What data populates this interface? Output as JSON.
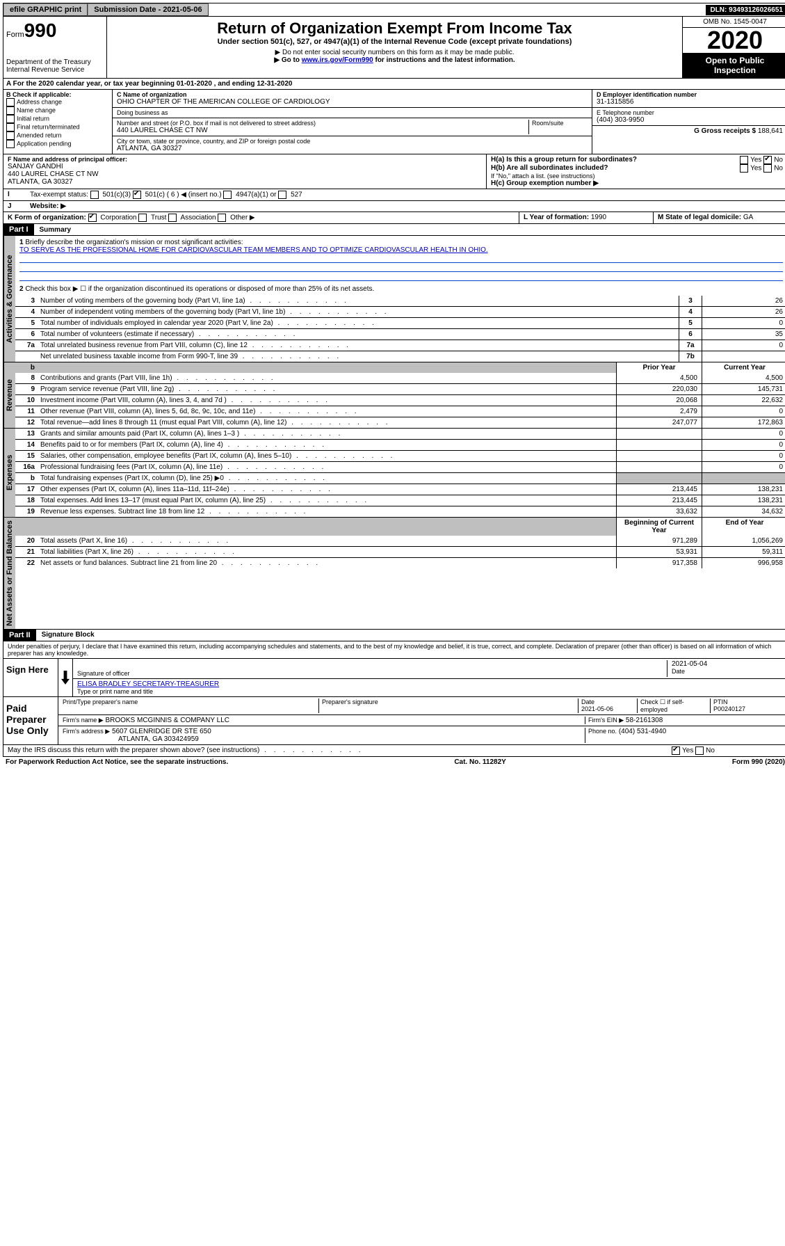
{
  "topbar": {
    "efile": "efile GRAPHIC print",
    "submission": "Submission Date - 2021-05-06",
    "dln": "DLN: 93493126026651"
  },
  "header": {
    "form_label": "Form",
    "form_number": "990",
    "dept": "Department of the Treasury\nInternal Revenue Service",
    "title": "Return of Organization Exempt From Income Tax",
    "subtitle": "Under section 501(c), 527, or 4947(a)(1) of the Internal Revenue Code (except private foundations)",
    "note1": "▶ Do not enter social security numbers on this form as it may be made public.",
    "note2_pre": "▶ Go to ",
    "note2_link": "www.irs.gov/Form990",
    "note2_post": " for instructions and the latest information.",
    "omb": "OMB No. 1545-0047",
    "year": "2020",
    "open": "Open to Public Inspection"
  },
  "section_a": "A For the 2020 calendar year, or tax year beginning 01-01-2020   , and ending 12-31-2020",
  "box_b": {
    "label": "B Check if applicable:",
    "items": [
      "Address change",
      "Name change",
      "Initial return",
      "Final return/terminated",
      "Amended return",
      "Application pending"
    ]
  },
  "box_c": {
    "name_label": "C Name of organization",
    "name": "OHIO CHAPTER OF THE AMERICAN COLLEGE OF CARDIOLOGY",
    "dba_label": "Doing business as",
    "addr_label": "Number and street (or P.O. box if mail is not delivered to street address)",
    "room_label": "Room/suite",
    "addr": "440 LAUREL CHASE CT NW",
    "city_label": "City or town, state or province, country, and ZIP or foreign postal code",
    "city": "ATLANTA, GA  30327"
  },
  "box_d": {
    "label": "D Employer identification number",
    "value": "31-1315856"
  },
  "box_e": {
    "label": "E Telephone number",
    "value": "(404) 303-9950"
  },
  "box_g": {
    "label": "G Gross receipts $",
    "value": "188,641"
  },
  "box_f": {
    "label": "F  Name and address of principal officer:",
    "name": "SANJAY GANDHI",
    "addr1": "440 LAUREL CHASE CT NW",
    "addr2": "ATLANTA, GA  30327"
  },
  "box_h": {
    "a_label": "H(a)  Is this a group return for subordinates?",
    "a_yes": "Yes",
    "a_no": "No",
    "b_label": "H(b)  Are all subordinates included?",
    "b_note": "If \"No,\" attach a list. (see instructions)",
    "c_label": "H(c)  Group exemption number ▶"
  },
  "box_i": {
    "label": "Tax-exempt status:",
    "opt1": "501(c)(3)",
    "opt2": "501(c) ( 6 ) ◀ (insert no.)",
    "opt3": "4947(a)(1) or",
    "opt4": "527"
  },
  "box_j": "Website: ▶",
  "box_k": {
    "label": "K Form of organization:",
    "corp": "Corporation",
    "trust": "Trust",
    "assoc": "Association",
    "other": "Other ▶"
  },
  "box_l": {
    "label": "L Year of formation:",
    "value": "1990"
  },
  "box_m": {
    "label": "M State of legal domicile:",
    "value": "GA"
  },
  "part1": {
    "label": "Part I",
    "title": "Summary"
  },
  "summary": {
    "line1_label": "Briefly describe the organization's mission or most significant activities:",
    "mission": "TO SERVE AS THE PROFESSIONAL HOME FOR CARDIOVASCULAR TEAM MEMBERS AND TO OPTIMIZE CARDIOVASCULAR HEALTH IN OHIO.",
    "line2": "Check this box ▶ ☐  if the organization discontinued its operations or disposed of more than 25% of its net assets.",
    "rows_gov": [
      {
        "n": "3",
        "d": "Number of voting members of the governing body (Part VI, line 1a)",
        "box": "3",
        "v": "26"
      },
      {
        "n": "4",
        "d": "Number of independent voting members of the governing body (Part VI, line 1b)",
        "box": "4",
        "v": "26"
      },
      {
        "n": "5",
        "d": "Total number of individuals employed in calendar year 2020 (Part V, line 2a)",
        "box": "5",
        "v": "0"
      },
      {
        "n": "6",
        "d": "Total number of volunteers (estimate if necessary)",
        "box": "6",
        "v": "35"
      },
      {
        "n": "7a",
        "d": "Total unrelated business revenue from Part VIII, column (C), line 12",
        "box": "7a",
        "v": "0"
      },
      {
        "n": "",
        "d": "Net unrelated business taxable income from Form 990-T, line 39",
        "box": "7b",
        "v": ""
      }
    ],
    "col_prior": "Prior Year",
    "col_current": "Current Year",
    "rows_rev": [
      {
        "n": "8",
        "d": "Contributions and grants (Part VIII, line 1h)",
        "p": "4,500",
        "c": "4,500"
      },
      {
        "n": "9",
        "d": "Program service revenue (Part VIII, line 2g)",
        "p": "220,030",
        "c": "145,731"
      },
      {
        "n": "10",
        "d": "Investment income (Part VIII, column (A), lines 3, 4, and 7d )",
        "p": "20,068",
        "c": "22,632"
      },
      {
        "n": "11",
        "d": "Other revenue (Part VIII, column (A), lines 5, 6d, 8c, 9c, 10c, and 11e)",
        "p": "2,479",
        "c": "0"
      },
      {
        "n": "12",
        "d": "Total revenue—add lines 8 through 11 (must equal Part VIII, column (A), line 12)",
        "p": "247,077",
        "c": "172,863"
      }
    ],
    "rows_exp": [
      {
        "n": "13",
        "d": "Grants and similar amounts paid (Part IX, column (A), lines 1–3 )",
        "p": "",
        "c": "0"
      },
      {
        "n": "14",
        "d": "Benefits paid to or for members (Part IX, column (A), line 4)",
        "p": "",
        "c": "0"
      },
      {
        "n": "15",
        "d": "Salaries, other compensation, employee benefits (Part IX, column (A), lines 5–10)",
        "p": "",
        "c": "0"
      },
      {
        "n": "16a",
        "d": "Professional fundraising fees (Part IX, column (A), line 11e)",
        "p": "",
        "c": "0"
      },
      {
        "n": "b",
        "d": "Total fundraising expenses (Part IX, column (D), line 25) ▶0",
        "p": "",
        "c": "",
        "shade": true
      },
      {
        "n": "17",
        "d": "Other expenses (Part IX, column (A), lines 11a–11d, 11f–24e)",
        "p": "213,445",
        "c": "138,231"
      },
      {
        "n": "18",
        "d": "Total expenses. Add lines 13–17 (must equal Part IX, column (A), line 25)",
        "p": "213,445",
        "c": "138,231"
      },
      {
        "n": "19",
        "d": "Revenue less expenses. Subtract line 18 from line 12",
        "p": "33,632",
        "c": "34,632"
      }
    ],
    "col_begin": "Beginning of Current Year",
    "col_end": "End of Year",
    "rows_net": [
      {
        "n": "20",
        "d": "Total assets (Part X, line 16)",
        "p": "971,289",
        "c": "1,056,269"
      },
      {
        "n": "21",
        "d": "Total liabilities (Part X, line 26)",
        "p": "53,931",
        "c": "59,311"
      },
      {
        "n": "22",
        "d": "Net assets or fund balances. Subtract line 21 from line 20",
        "p": "917,358",
        "c": "996,958"
      }
    ],
    "vlabel_gov": "Activities & Governance",
    "vlabel_rev": "Revenue",
    "vlabel_exp": "Expenses",
    "vlabel_net": "Net Assets or Fund Balances"
  },
  "part2": {
    "label": "Part II",
    "title": "Signature Block"
  },
  "sig_declaration": "Under penalties of perjury, I declare that I have examined this return, including accompanying schedules and statements, and to the best of my knowledge and belief, it is true, correct, and complete. Declaration of preparer (other than officer) is based on all information of which preparer has any knowledge.",
  "sign": {
    "here": "Sign Here",
    "sig_officer": "Signature of officer",
    "date": "2021-05-04",
    "date_label": "Date",
    "name": "ELISA BRADLEY SECRETARY-TREASURER",
    "name_label": "Type or print name and title"
  },
  "paid": {
    "label": "Paid Preparer Use Only",
    "col1": "Print/Type preparer's name",
    "col2": "Preparer's signature",
    "col3": "Date",
    "date": "2021-05-06",
    "col4_label": "Check ☐ if self-employed",
    "col5_label": "PTIN",
    "ptin": "P00240127",
    "firm_name_label": "Firm's name    ▶",
    "firm_name": "BROOKS MCGINNIS & COMPANY LLC",
    "firm_ein_label": "Firm's EIN ▶",
    "firm_ein": "58-2161308",
    "firm_addr_label": "Firm's address ▶",
    "firm_addr1": "5607 GLENRIDGE DR STE 650",
    "firm_addr2": "ATLANTA, GA  303424959",
    "phone_label": "Phone no.",
    "phone": "(404) 531-4940"
  },
  "discuss": "May the IRS discuss this return with the preparer shown above? (see instructions)",
  "discuss_yes": "Yes",
  "discuss_no": "No",
  "footer": {
    "left": "For Paperwork Reduction Act Notice, see the separate instructions.",
    "mid": "Cat. No. 11282Y",
    "right": "Form 990 (2020)"
  }
}
